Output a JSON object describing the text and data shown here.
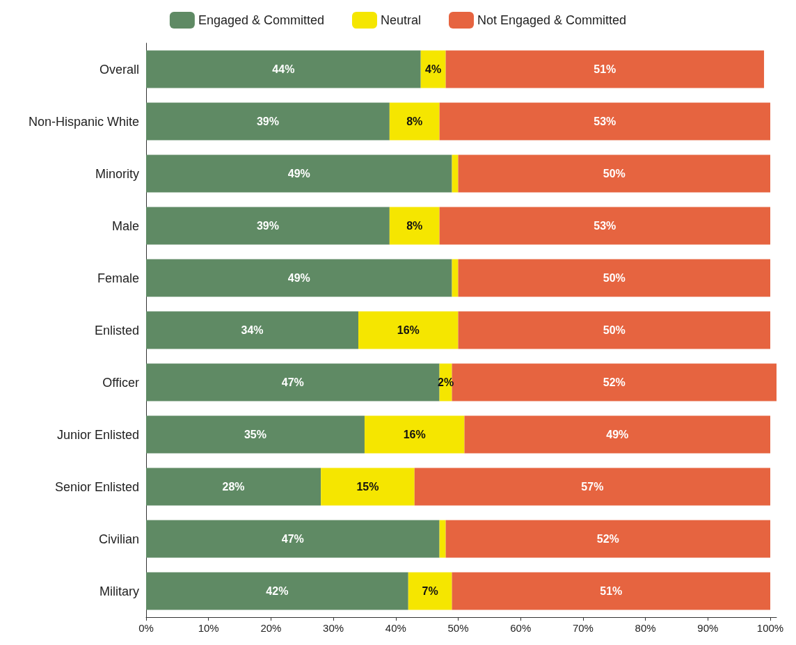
{
  "chart_data": {
    "type": "bar",
    "orientation": "horizontal",
    "stacked": true,
    "legend": "top",
    "categories": [
      "Overall",
      "Non-Hispanic White",
      "Minority",
      "Male",
      "Female",
      "Enlisted",
      "Officer",
      "Junior Enlisted",
      "Senior Enlisted",
      "Civilian",
      "Military"
    ],
    "series": [
      {
        "name": "Engaged & Committed",
        "color": "#5f8a64",
        "values": [
          44,
          39,
          49,
          39,
          49,
          34,
          47,
          35,
          28,
          47,
          42
        ],
        "value_labels": [
          "44%",
          "39%",
          "49%",
          "39%",
          "49%",
          "34%",
          "47%",
          "35%",
          "28%",
          "47%",
          "42%"
        ]
      },
      {
        "name": "Neutral",
        "color": "#f5e600",
        "values": [
          4,
          8,
          1,
          8,
          1,
          16,
          2,
          16,
          15,
          1,
          7
        ],
        "value_labels": [
          "4%",
          "8%",
          null,
          "8%",
          null,
          "16%",
          "2%",
          "16%",
          "15%",
          null,
          "7%"
        ]
      },
      {
        "name": "Not Engaged & Committed",
        "color": "#e66440",
        "values": [
          51,
          53,
          50,
          53,
          50,
          50,
          52,
          49,
          57,
          52,
          51
        ],
        "value_labels": [
          "51%",
          "53%",
          "50%",
          "53%",
          "50%",
          "50%",
          "52%",
          "49%",
          "57%",
          "52%",
          "51%"
        ]
      }
    ],
    "xlim": [
      0,
      101
    ],
    "xticks": [
      {
        "value": 0,
        "label": "0%"
      },
      {
        "value": 10,
        "label": "10%"
      },
      {
        "value": 20,
        "label": "20%"
      },
      {
        "value": 30,
        "label": "30%"
      },
      {
        "value": 40,
        "label": "40%"
      },
      {
        "value": 50,
        "label": "50%"
      },
      {
        "value": 60,
        "label": "60%"
      },
      {
        "value": 70,
        "label": "70%"
      },
      {
        "value": 80,
        "label": "80%"
      },
      {
        "value": 90,
        "label": "90%"
      },
      {
        "value": 100,
        "label": "100%"
      }
    ],
    "grid": false
  }
}
